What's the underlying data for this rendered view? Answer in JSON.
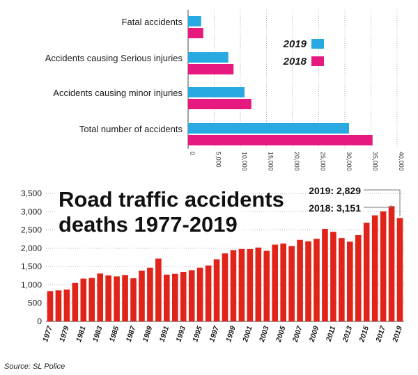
{
  "chart_data": [
    {
      "type": "bar",
      "orientation": "horizontal",
      "categories": [
        "Fatal accidents",
        "Accidents causing Serious injuries",
        "Accidents causing minor injuries",
        "Total number of accidents"
      ],
      "series": [
        {
          "name": "2019",
          "values": [
            2500,
            7700,
            10800,
            30800
          ],
          "color": "#29a9e1"
        },
        {
          "name": "2018",
          "values": [
            2900,
            8700,
            12100,
            35300
          ],
          "color": "#e6197e"
        }
      ],
      "xlim": [
        0,
        40000
      ],
      "xticks": [
        "0",
        "5,000",
        "10,000",
        "15,000",
        "20,000",
        "25,000",
        "30,000",
        "35,000",
        "40,000"
      ],
      "tick_values": [
        0,
        5000,
        10000,
        15000,
        20000,
        25000,
        30000,
        35000,
        40000
      ],
      "grid": true,
      "legend": "top-right"
    },
    {
      "type": "bar",
      "title_line1": "Road traffic accidents",
      "title_line2": "deaths 1977-2019",
      "years": [
        1977,
        1978,
        1979,
        1980,
        1981,
        1982,
        1983,
        1984,
        1985,
        1986,
        1987,
        1988,
        1989,
        1990,
        1991,
        1992,
        1993,
        1994,
        1995,
        1996,
        1997,
        1998,
        1999,
        2000,
        2001,
        2002,
        2003,
        2004,
        2005,
        2006,
        2007,
        2008,
        2009,
        2010,
        2011,
        2012,
        2013,
        2014,
        2015,
        2016,
        2017,
        2018,
        2019
      ],
      "values": [
        830,
        850,
        870,
        1050,
        1170,
        1190,
        1310,
        1260,
        1230,
        1270,
        1180,
        1390,
        1470,
        1720,
        1280,
        1300,
        1350,
        1400,
        1470,
        1530,
        1700,
        1860,
        1950,
        1980,
        1980,
        2020,
        1930,
        2100,
        2130,
        2060,
        2230,
        2190,
        2260,
        2530,
        2450,
        2280,
        2180,
        2360,
        2700,
        2900,
        3010,
        3151,
        2829
      ],
      "color": "#e02419",
      "ylim": [
        0,
        3500
      ],
      "yticks": [
        "0",
        "500",
        "1,000",
        "1,500",
        "2,000",
        "2,500",
        "3,000",
        "3,500"
      ],
      "ytick_values": [
        0,
        500,
        1000,
        1500,
        2000,
        2500,
        3000,
        3500
      ],
      "xticks": [
        "1977",
        "1979",
        "1981",
        "1983",
        "1985",
        "1987",
        "1989",
        "1991",
        "1993",
        "1995",
        "1997",
        "1999",
        "2001",
        "2003",
        "2005",
        "2007",
        "2009",
        "2011",
        "2013",
        "2015",
        "2017",
        "2019"
      ],
      "annotations": [
        {
          "text": "2019: 2,829",
          "year": 2019
        },
        {
          "text": "2018: 3,151",
          "year": 2018
        }
      ],
      "grid": true
    }
  ],
  "source": "Source: SL Police"
}
